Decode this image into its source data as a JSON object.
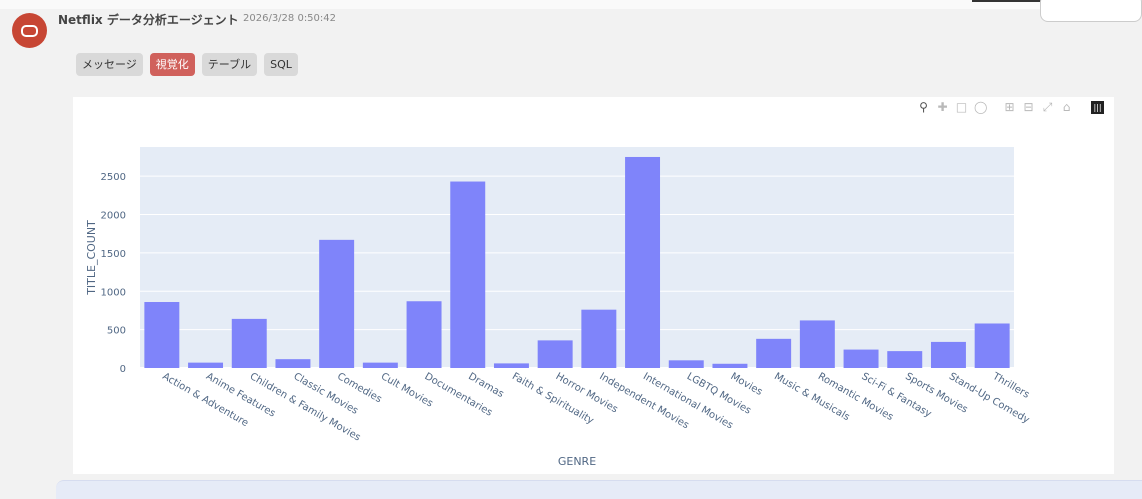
{
  "header": {
    "sender": "Netflix データ分析エージェント",
    "timestamp": "2026/3/28 0:50:42"
  },
  "tabs": [
    {
      "label": "メッセージ",
      "active": false
    },
    {
      "label": "視覚化",
      "active": true
    },
    {
      "label": "テーブル",
      "active": false
    },
    {
      "label": "SQL",
      "active": false
    }
  ],
  "modebar_icons": [
    "zoom-icon",
    "pan-icon",
    "box-select-icon",
    "lasso-icon",
    "zoom-in-icon",
    "zoom-out-icon",
    "autoscale-icon",
    "reset-axes-icon",
    "plotly-logo-icon"
  ],
  "colors": {
    "bar": "#7f84fa",
    "plot_bg": "#e5ecf6",
    "accent": "#c74634",
    "active_tab": "#d0615c"
  },
  "chart_data": {
    "type": "bar",
    "xlabel": "GENRE",
    "ylabel": "TITLE_COUNT",
    "ylim": [
      0,
      2880
    ],
    "yticks": [
      0,
      500,
      1000,
      1500,
      2000,
      2500
    ],
    "categories": [
      "Action & Adventure",
      "Anime Features",
      "Children & Family Movies",
      "Classic Movies",
      "Comedies",
      "Cult Movies",
      "Documentaries",
      "Dramas",
      "Faith & Spirituality",
      "Horror Movies",
      "Independent Movies",
      "International Movies",
      "LGBTQ Movies",
      "Movies",
      "Music & Musicals",
      "Romantic Movies",
      "Sci-Fi & Fantasy",
      "Sports Movies",
      "Stand-Up Comedy",
      "Thrillers"
    ],
    "values": [
      860,
      70,
      640,
      115,
      1670,
      70,
      870,
      2430,
      60,
      360,
      760,
      2750,
      100,
      55,
      380,
      620,
      240,
      220,
      340,
      580
    ]
  }
}
